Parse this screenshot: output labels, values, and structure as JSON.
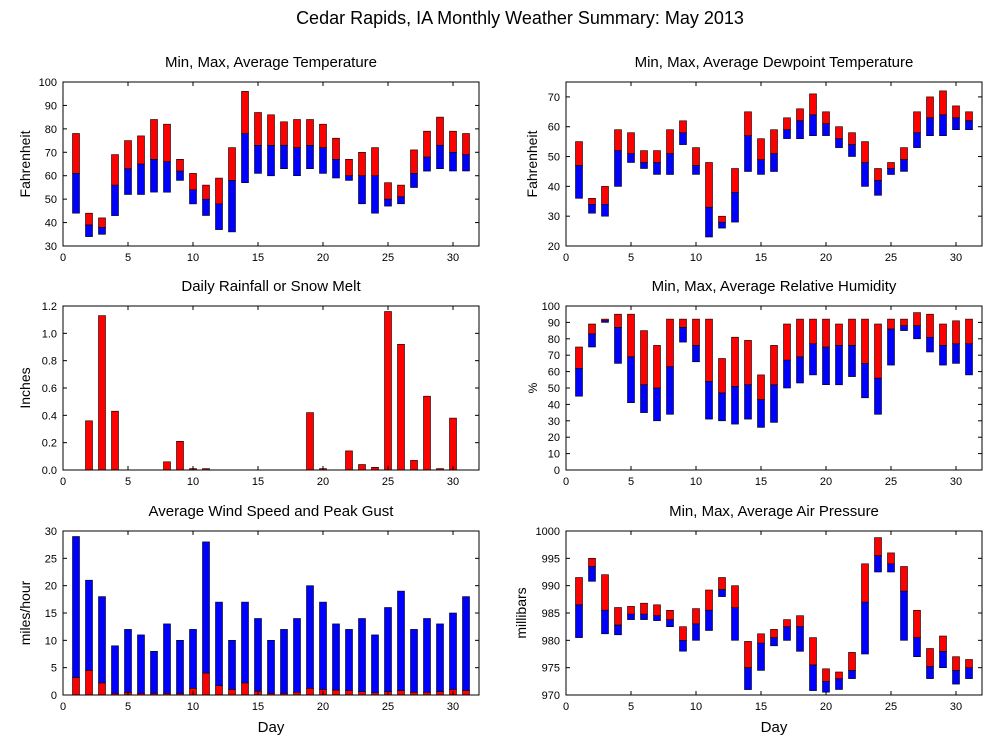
{
  "figure": {
    "title": "Cedar Rapids, IA Monthly Weather Summary: May 2013",
    "xlabel_bottom": "Day"
  },
  "colors": {
    "red": "#ff0000",
    "blue": "#0000ff",
    "axis": "#000000",
    "grid": "#a0a0a0"
  },
  "chart_data": [
    {
      "id": "temperature",
      "type": "bar",
      "title": "Min, Max, Average Temperature",
      "ylabel": "Fahrenheit",
      "xlim": [
        0,
        32
      ],
      "ylim": [
        30,
        100
      ],
      "xticks": [
        0,
        5,
        10,
        15,
        20,
        25,
        30
      ],
      "yticks": [
        30,
        40,
        50,
        60,
        70,
        80,
        90,
        100
      ],
      "x": [
        1,
        2,
        3,
        4,
        5,
        6,
        7,
        8,
        9,
        10,
        11,
        12,
        13,
        14,
        15,
        16,
        17,
        18,
        19,
        20,
        21,
        22,
        23,
        24,
        25,
        26,
        27,
        28,
        29,
        30,
        31
      ],
      "series": [
        {
          "key": "min",
          "values": [
            44,
            34,
            35,
            43,
            52,
            52,
            53,
            53,
            58,
            48,
            43,
            37,
            36,
            57,
            61,
            60,
            63,
            60,
            63,
            61,
            59,
            58,
            48,
            44,
            47,
            48,
            55,
            62,
            63,
            62,
            62
          ]
        },
        {
          "key": "avg",
          "values": [
            61,
            39,
            38,
            56,
            63,
            65,
            67,
            66,
            62,
            54,
            50,
            48,
            58,
            78,
            73,
            73,
            73,
            72,
            73,
            72,
            67,
            60,
            60,
            60,
            50,
            51,
            61,
            68,
            73,
            70,
            69
          ]
        },
        {
          "key": "max",
          "values": [
            78,
            44,
            42,
            69,
            75,
            77,
            84,
            82,
            67,
            61,
            56,
            59,
            72,
            96,
            87,
            86,
            83,
            84,
            84,
            82,
            76,
            67,
            70,
            72,
            57,
            56,
            71,
            79,
            85,
            79,
            78
          ]
        }
      ]
    },
    {
      "id": "dewpoint",
      "type": "bar",
      "title": "Min, Max, Average Dewpoint Temperature",
      "ylabel": "Fahrenheit",
      "xlim": [
        0,
        32
      ],
      "ylim": [
        20,
        75
      ],
      "xticks": [
        0,
        5,
        10,
        15,
        20,
        25,
        30
      ],
      "yticks": [
        20,
        30,
        40,
        50,
        60,
        70
      ],
      "x": [
        1,
        2,
        3,
        4,
        5,
        6,
        7,
        8,
        9,
        10,
        11,
        12,
        13,
        14,
        15,
        16,
        17,
        18,
        19,
        20,
        21,
        22,
        23,
        24,
        25,
        26,
        27,
        28,
        29,
        30,
        31
      ],
      "series": [
        {
          "key": "min",
          "values": [
            36,
            31,
            30,
            40,
            48,
            46,
            44,
            44,
            54,
            44,
            23,
            26,
            28,
            45,
            44,
            45,
            56,
            56,
            57,
            57,
            53,
            50,
            40,
            37,
            44,
            45,
            53,
            57,
            57,
            59,
            59
          ]
        },
        {
          "key": "avg",
          "values": [
            47,
            34,
            34,
            52,
            51,
            48,
            48,
            51,
            58,
            47,
            33,
            28,
            38,
            57,
            49,
            51,
            59,
            62,
            64,
            61,
            56,
            54,
            48,
            42,
            46,
            49,
            58,
            63,
            64,
            63,
            62
          ]
        },
        {
          "key": "max",
          "values": [
            55,
            36,
            40,
            59,
            58,
            52,
            52,
            59,
            62,
            53,
            48,
            30,
            46,
            65,
            56,
            59,
            63,
            66,
            71,
            65,
            60,
            58,
            55,
            46,
            48,
            53,
            65,
            70,
            72,
            67,
            65
          ]
        }
      ]
    },
    {
      "id": "rainfall",
      "type": "bar",
      "title": "Daily Rainfall or Snow Melt",
      "ylabel": "Inches",
      "xlim": [
        0,
        32
      ],
      "ylim": [
        0.0,
        1.2
      ],
      "xticks": [
        0,
        5,
        10,
        15,
        20,
        25,
        30
      ],
      "yticks": [
        0.0,
        0.2,
        0.4,
        0.6,
        0.8,
        1.0,
        1.2
      ],
      "ytick_labels": [
        "0.0",
        "0.2",
        "0.4",
        "0.6",
        "0.8",
        "1.0",
        "1.2"
      ],
      "x": [
        1,
        2,
        3,
        4,
        5,
        6,
        7,
        8,
        9,
        10,
        11,
        12,
        13,
        14,
        15,
        16,
        17,
        18,
        19,
        20,
        21,
        22,
        23,
        24,
        25,
        26,
        27,
        28,
        29,
        30,
        31
      ],
      "values": [
        0,
        0.36,
        1.13,
        0.43,
        0,
        0,
        0,
        0.06,
        0.21,
        0.01,
        0.01,
        0,
        0,
        0,
        0,
        0,
        0,
        0,
        0.42,
        0.01,
        0,
        0.14,
        0.04,
        0.02,
        1.16,
        0.92,
        0.07,
        0.54,
        0.01,
        0.38,
        0
      ]
    },
    {
      "id": "humidity",
      "type": "bar",
      "title": "Min, Max, Average Relative Humidity",
      "ylabel": "%",
      "xlim": [
        0,
        32
      ],
      "ylim": [
        0,
        100
      ],
      "xticks": [
        0,
        5,
        10,
        15,
        20,
        25,
        30
      ],
      "yticks": [
        0,
        10,
        20,
        30,
        40,
        50,
        60,
        70,
        80,
        90,
        100
      ],
      "x": [
        1,
        2,
        3,
        4,
        5,
        6,
        7,
        8,
        9,
        10,
        11,
        12,
        13,
        14,
        15,
        16,
        17,
        18,
        19,
        20,
        21,
        22,
        23,
        24,
        25,
        26,
        27,
        28,
        29,
        30,
        31
      ],
      "series": [
        {
          "key": "min",
          "values": [
            45,
            75,
            90,
            65,
            41,
            35,
            30,
            34,
            78,
            66,
            31,
            30,
            28,
            31,
            26,
            29,
            50,
            53,
            58,
            52,
            52,
            57,
            44,
            34,
            64,
            85,
            80,
            72,
            64,
            65,
            58
          ]
        },
        {
          "key": "avg",
          "values": [
            62,
            83,
            91,
            87,
            69,
            52,
            50,
            63,
            87,
            76,
            54,
            47,
            51,
            52,
            43,
            52,
            67,
            69,
            77,
            75,
            76,
            76,
            65,
            56,
            86,
            88,
            88,
            81,
            76,
            77,
            77
          ]
        },
        {
          "key": "max",
          "values": [
            75,
            89,
            92,
            95,
            95,
            85,
            76,
            92,
            92,
            92,
            92,
            68,
            81,
            79,
            58,
            76,
            89,
            92,
            92,
            92,
            89,
            92,
            92,
            89,
            92,
            92,
            96,
            95,
            89,
            91,
            92
          ]
        }
      ]
    },
    {
      "id": "wind",
      "type": "bar",
      "title": "Average Wind Speed and Peak Gust",
      "ylabel": "miles/hour",
      "xlabel": "Day",
      "xlim": [
        0,
        32
      ],
      "ylim": [
        0,
        30
      ],
      "xticks": [
        0,
        5,
        10,
        15,
        20,
        25,
        30
      ],
      "yticks": [
        0,
        5,
        10,
        15,
        20,
        25,
        30
      ],
      "x": [
        1,
        2,
        3,
        4,
        5,
        6,
        7,
        8,
        9,
        10,
        11,
        12,
        13,
        14,
        15,
        16,
        17,
        18,
        19,
        20,
        21,
        22,
        23,
        24,
        25,
        26,
        27,
        28,
        29,
        30,
        31
      ],
      "series": [
        {
          "key": "avg",
          "values": [
            3.2,
            4.5,
            2.2,
            0.3,
            0.5,
            0.3,
            0.3,
            0.3,
            0.3,
            1.2,
            4.0,
            1.7,
            1.0,
            2.2,
            0.7,
            0.3,
            0.3,
            0.5,
            1.2,
            1.0,
            0.9,
            0.8,
            0.6,
            0.4,
            0.6,
            0.8,
            0.5,
            0.5,
            0.6,
            1.0,
            0.8
          ]
        },
        {
          "key": "gust",
          "values": [
            29,
            21,
            18,
            9,
            12,
            11,
            8,
            13,
            10,
            12,
            28,
            17,
            10,
            17,
            14,
            10,
            12,
            14,
            20,
            17,
            13,
            12,
            14,
            11,
            16,
            19,
            12,
            14,
            13,
            15,
            18
          ]
        }
      ]
    },
    {
      "id": "pressure",
      "type": "bar",
      "title": "Min, Max, Average Air Pressure",
      "ylabel": "millibars",
      "xlabel": "Day",
      "xlim": [
        0,
        32
      ],
      "ylim": [
        970,
        1000
      ],
      "xticks": [
        0,
        5,
        10,
        15,
        20,
        25,
        30
      ],
      "yticks": [
        970,
        975,
        980,
        985,
        990,
        995,
        1000
      ],
      "x": [
        1,
        2,
        3,
        4,
        5,
        6,
        7,
        8,
        9,
        10,
        11,
        12,
        13,
        14,
        15,
        16,
        17,
        18,
        19,
        20,
        21,
        22,
        23,
        24,
        25,
        26,
        27,
        28,
        29,
        30,
        31
      ],
      "series": [
        {
          "key": "min",
          "values": [
            980.5,
            990.8,
            981.2,
            981,
            983.8,
            983.8,
            983.6,
            982.5,
            978,
            980,
            981.8,
            988,
            980,
            971,
            974.5,
            979,
            980,
            978,
            970.8,
            970.5,
            971,
            973,
            977.5,
            992.5,
            992.5,
            980,
            977,
            973,
            975,
            972,
            973
          ]
        },
        {
          "key": "avg",
          "values": [
            986.5,
            993.5,
            985.5,
            982.8,
            984.8,
            984.8,
            984.5,
            983.8,
            980,
            983,
            985.5,
            989.3,
            986,
            975,
            979.5,
            980.5,
            982.5,
            982.5,
            975.5,
            972.5,
            973,
            974.5,
            987,
            995.5,
            994,
            989,
            980.5,
            975.2,
            978,
            974.5,
            975
          ]
        },
        {
          "key": "max",
          "values": [
            991.5,
            995,
            992,
            986,
            986.2,
            986.8,
            986.5,
            985.5,
            982.5,
            985.8,
            989.2,
            991.5,
            990,
            979.8,
            981.2,
            982,
            983.8,
            984.5,
            980.5,
            974.8,
            974.2,
            977.8,
            994,
            998.8,
            996,
            993.5,
            985.5,
            978.5,
            980.8,
            977,
            976.5
          ]
        }
      ]
    }
  ]
}
